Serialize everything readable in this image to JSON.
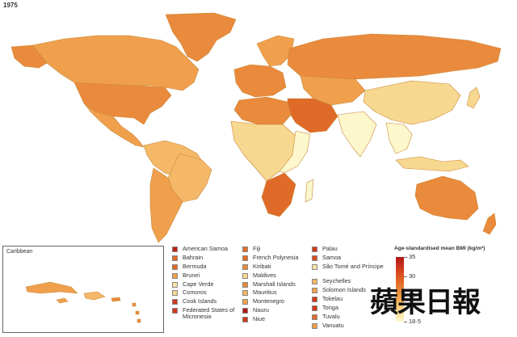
{
  "year": "1975",
  "colors": {
    "bmi_18_5": "#fdf7cc",
    "bmi_21": "#f7d890",
    "bmi_23": "#f4b868",
    "bmi_24": "#f0a04c",
    "bmi_25": "#ea8a3c",
    "bmi_27": "#e06a28",
    "bmi_30": "#d13a1c",
    "bmi_35": "#b11515"
  },
  "inset": {
    "title": "Caribbean"
  },
  "legend": {
    "columns": [
      [
        {
          "label": "American Samoa",
          "color": "#c0201a"
        },
        {
          "label": "Bahrain",
          "color": "#e06a28"
        },
        {
          "label": "Bermuda",
          "color": "#e06a28"
        },
        {
          "label": "Brunei",
          "color": "#f0a04c"
        },
        {
          "label": "Cape Verde",
          "color": "#f9e2a6"
        },
        {
          "label": "Comoros",
          "color": "#f7d890"
        },
        {
          "label": "Cook Islands",
          "color": "#d13a1c"
        },
        {
          "label": "Federated States of Micronesia",
          "color": "#d13a1c"
        }
      ],
      [
        {
          "label": "Fiji",
          "color": "#e36d27"
        },
        {
          "label": "French Polynesia",
          "color": "#e36d27"
        },
        {
          "label": "Kiribati",
          "color": "#ea8a3c"
        },
        {
          "label": "Maldives",
          "color": "#f7d890"
        },
        {
          "label": "Marshall Islands",
          "color": "#ea8a3c"
        },
        {
          "label": "Mauritius",
          "color": "#f4b868"
        },
        {
          "label": "Montenegro",
          "color": "#f0a04c"
        },
        {
          "label": "Nauru",
          "color": "#b11515"
        },
        {
          "label": "Niue",
          "color": "#d13a1c"
        }
      ],
      [
        {
          "label": "Palau",
          "color": "#d13a1c"
        },
        {
          "label": "Samoa",
          "color": "#d84e20"
        },
        {
          "label": "São Tomé and Príncipe",
          "color": "#f9e2a6"
        },
        {
          "label": "Seychelles",
          "color": "#f4b868"
        },
        {
          "label": "Solomon Islands",
          "color": "#f0a04c"
        },
        {
          "label": "Tokelau",
          "color": "#d13a1c"
        },
        {
          "label": "Tonga",
          "color": "#d13a1c"
        },
        {
          "label": "Tuvalu",
          "color": "#e06a28"
        },
        {
          "label": "Vanuatu",
          "color": "#f0a04c"
        }
      ]
    ]
  },
  "scale": {
    "title": "Age-standardised mean BMI (kg/m²)",
    "min": 18.5,
    "max": 35,
    "ticks": [
      {
        "label": "35",
        "value": 35
      },
      {
        "label": "30",
        "value": 30
      },
      {
        "label": "25",
        "value": 25
      },
      {
        "label": "18·5",
        "value": 18.5
      }
    ]
  },
  "watermark": "蘋果日報"
}
